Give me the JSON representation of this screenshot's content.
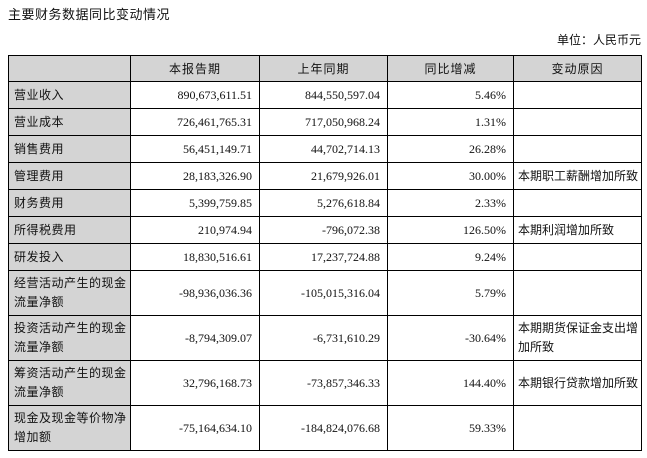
{
  "page": {
    "title": "主要财务数据同比变动情况",
    "unit_label": "单位：人民币元"
  },
  "table": {
    "headers": [
      "",
      "本报告期",
      "上年同期",
      "同比增减",
      "变动原因"
    ],
    "rows": [
      {
        "label": "营业收入",
        "current": "890,673,611.51",
        "prior": "844,550,597.04",
        "change": "5.46%",
        "reason": ""
      },
      {
        "label": "营业成本",
        "current": "726,461,765.31",
        "prior": "717,050,968.24",
        "change": "1.31%",
        "reason": ""
      },
      {
        "label": "销售费用",
        "current": "56,451,149.71",
        "prior": "44,702,714.13",
        "change": "26.28%",
        "reason": ""
      },
      {
        "label": "管理费用",
        "current": "28,183,326.90",
        "prior": "21,679,926.01",
        "change": "30.00%",
        "reason": "本期职工薪酬增加所致"
      },
      {
        "label": "财务费用",
        "current": "5,399,759.85",
        "prior": "5,276,618.84",
        "change": "2.33%",
        "reason": ""
      },
      {
        "label": "所得税费用",
        "current": "210,974.94",
        "prior": "-796,072.38",
        "change": "126.50%",
        "reason": "本期利润增加所致"
      },
      {
        "label": "研发投入",
        "current": "18,830,516.61",
        "prior": "17,237,724.88",
        "change": "9.24%",
        "reason": ""
      },
      {
        "label": "经营活动产生的现金流量净额",
        "current": "-98,936,036.36",
        "prior": "-105,015,316.04",
        "change": "5.79%",
        "reason": ""
      },
      {
        "label": "投资活动产生的现金流量净额",
        "current": "-8,794,309.07",
        "prior": "-6,731,610.29",
        "change": "-30.64%",
        "reason": "本期期货保证金支出增加所致"
      },
      {
        "label": "筹资活动产生的现金流量净额",
        "current": "32,796,168.73",
        "prior": "-73,857,346.33",
        "change": "144.40%",
        "reason": "本期银行贷款增加所致"
      },
      {
        "label": "现金及现金等价物净增加额",
        "current": "-75,164,634.10",
        "prior": "-184,824,076.68",
        "change": "59.33%",
        "reason": ""
      }
    ]
  },
  "colors": {
    "header_bg": "#d4d4d4",
    "label_bg": "#d4d4d4",
    "border": "#000000",
    "text": "#111111",
    "page_bg": "#ffffff"
  }
}
